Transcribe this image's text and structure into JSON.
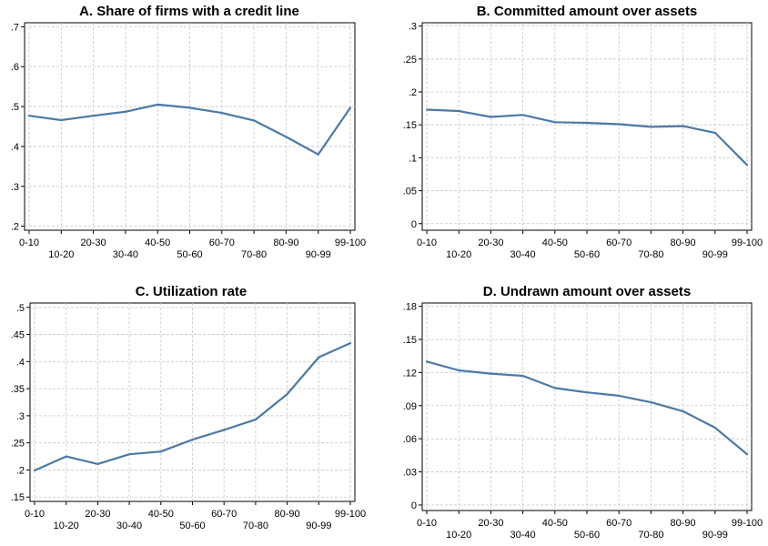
{
  "chart_data": [
    {
      "type": "line",
      "title": "A. Share of firms with a credit line",
      "categories": [
        "0-10",
        "10-20",
        "20-30",
        "30-40",
        "40-50",
        "50-60",
        "60-70",
        "70-80",
        "80-90",
        "90-99",
        "99-100"
      ],
      "values": [
        0.477,
        0.466,
        0.477,
        0.487,
        0.505,
        0.497,
        0.484,
        0.465,
        0.424,
        0.38,
        0.497
      ],
      "ylim": [
        0.19,
        0.71
      ],
      "yticks": [
        0.2,
        0.3,
        0.4,
        0.5,
        0.6,
        0.7
      ],
      "yticklabels": [
        ".2",
        ".3",
        ".4",
        ".5",
        ".6",
        ".7"
      ],
      "grid": true
    },
    {
      "type": "line",
      "title": "B. Committed amount over assets",
      "categories": [
        "0-10",
        "10-20",
        "20-30",
        "30-40",
        "40-50",
        "50-60",
        "60-70",
        "70-80",
        "80-90",
        "90-99",
        "99-100"
      ],
      "values": [
        0.173,
        0.171,
        0.162,
        0.165,
        0.154,
        0.153,
        0.151,
        0.147,
        0.148,
        0.138,
        0.089
      ],
      "ylim": [
        -0.01,
        0.305
      ],
      "yticks": [
        0,
        0.05,
        0.1,
        0.15,
        0.2,
        0.25,
        0.3
      ],
      "yticklabels": [
        "0",
        ".05",
        ".1",
        ".15",
        ".2",
        ".25",
        ".3"
      ],
      "grid": true
    },
    {
      "type": "line",
      "title": "C. Utilization rate",
      "categories": [
        "0-10",
        "10-20",
        "20-30",
        "30-40",
        "40-50",
        "50-60",
        "60-70",
        "70-80",
        "80-90",
        "90-99",
        "99-100"
      ],
      "values": [
        0.199,
        0.225,
        0.211,
        0.229,
        0.234,
        0.256,
        0.274,
        0.293,
        0.34,
        0.408,
        0.434
      ],
      "ylim": [
        0.142,
        0.508
      ],
      "yticks": [
        0.15,
        0.2,
        0.25,
        0.3,
        0.35,
        0.4,
        0.45,
        0.5
      ],
      "yticklabels": [
        ".15",
        ".2",
        ".25",
        ".3",
        ".35",
        ".4",
        ".45",
        ".5"
      ],
      "grid": true
    },
    {
      "type": "line",
      "title": "D. Undrawn amount over assets",
      "categories": [
        "0-10",
        "10-20",
        "20-30",
        "30-40",
        "40-50",
        "50-60",
        "60-70",
        "70-80",
        "80-90",
        "90-99",
        "99-100"
      ],
      "values": [
        0.13,
        0.122,
        0.119,
        0.117,
        0.106,
        0.102,
        0.099,
        0.093,
        0.085,
        0.07,
        0.046
      ],
      "ylim": [
        -0.005,
        0.183
      ],
      "yticks": [
        0,
        0.03,
        0.06,
        0.09,
        0.12,
        0.15,
        0.18
      ],
      "yticklabels": [
        "0",
        ".03",
        ".06",
        ".09",
        ".12",
        ".15",
        ".18"
      ],
      "grid": true
    }
  ]
}
